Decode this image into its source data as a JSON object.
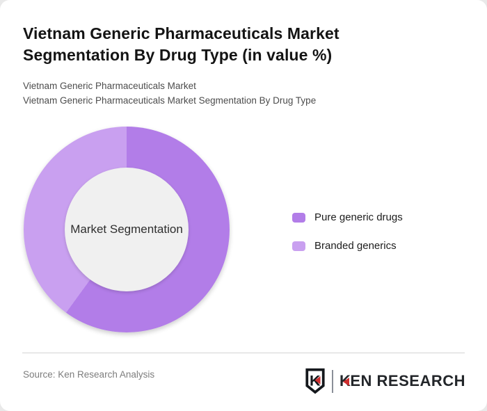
{
  "page": {
    "title_line1": "Vietnam Generic Pharmaceuticals Market",
    "title_line2": "Segmentation By Drug Type (in value %)",
    "subtitle_line1": "Vietnam Generic Pharmaceuticals Market",
    "subtitle_line2": "Vietnam Generic Pharmaceuticals Market Segmentation By Drug Type"
  },
  "chart_data": {
    "type": "pie",
    "donut": true,
    "title": "Vietnam Generic Pharmaceuticals Market Segmentation By Drug Type (in value %)",
    "center_label": "Market Segmentation",
    "units": "value %",
    "start_angle_deg": 0,
    "direction": "clockwise",
    "legend_position": "right",
    "series": [
      {
        "name": "Pure generic drugs",
        "value": 60,
        "color": "#b27de8"
      },
      {
        "name": "Branded generics",
        "value": 40,
        "color": "#c9a0f0"
      }
    ],
    "center_fill": "#f0f0f0"
  },
  "footer": {
    "source": "Source: Ken Research Analysis",
    "logo": {
      "shield_letter": "K",
      "wordmark_first": "K",
      "wordmark_rest": "EN RESEARCH",
      "accent_color": "#cf2e2e"
    }
  }
}
